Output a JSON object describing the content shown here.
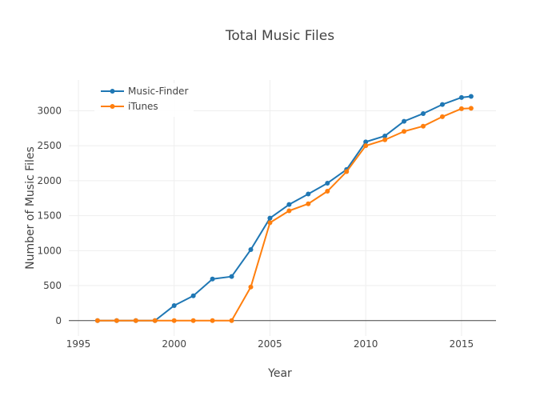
{
  "chart_data": {
    "type": "line",
    "title": "Total Music Files",
    "xlabel": "Year",
    "ylabel": "Number of Music Files",
    "xlim": [
      1994.5,
      2016.8
    ],
    "ylim": [
      -220,
      3440
    ],
    "xticks": [
      1995,
      2000,
      2005,
      2010,
      2015
    ],
    "yticks": [
      0,
      500,
      1000,
      1500,
      2000,
      2500,
      3000
    ],
    "grid": true,
    "legend": "top-left",
    "series": [
      {
        "name": "Music-Finder",
        "color": "#1f77b4",
        "x": [
          1996,
          1997,
          1998,
          1999,
          2000,
          2001,
          2002,
          2003,
          2004,
          2005,
          2006,
          2007,
          2008,
          2009,
          2010,
          2011,
          2012,
          2013,
          2014,
          2015,
          2015.5
        ],
        "y": [
          0,
          0,
          0,
          0,
          215,
          355,
          595,
          630,
          1015,
          1465,
          1660,
          1810,
          1965,
          2160,
          2555,
          2640,
          2850,
          2960,
          3090,
          3190,
          3205
        ]
      },
      {
        "name": "iTunes",
        "color": "#ff7f0e",
        "x": [
          1996,
          1997,
          1998,
          1999,
          2000,
          2001,
          2002,
          2003,
          2004,
          2005,
          2006,
          2007,
          2008,
          2009,
          2010,
          2011,
          2012,
          2013,
          2014,
          2015,
          2015.5
        ],
        "y": [
          0,
          0,
          0,
          0,
          0,
          0,
          0,
          0,
          480,
          1400,
          1570,
          1670,
          1850,
          2130,
          2500,
          2585,
          2705,
          2780,
          2915,
          3030,
          3035
        ]
      }
    ]
  }
}
